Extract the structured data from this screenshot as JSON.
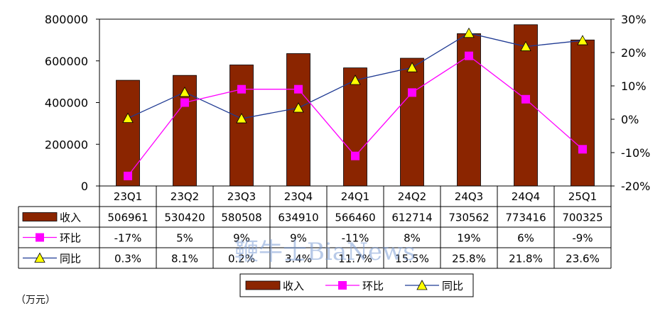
{
  "chart_data": {
    "type": "bar",
    "categories": [
      "23Q1",
      "23Q2",
      "23Q3",
      "23Q4",
      "24Q1",
      "24Q2",
      "24Q3",
      "24Q4",
      "25Q1"
    ],
    "unit": "（万元）",
    "ylim": [
      0,
      800000
    ],
    "yticks": [
      "800000",
      "600000",
      "400000",
      "200000",
      "0"
    ],
    "y2lim": [
      -20,
      30
    ],
    "y2ticks": [
      "30%",
      "20%",
      "10%",
      "0%",
      "-10%",
      "-20%"
    ],
    "series": [
      {
        "name": "收入",
        "kind": "bar",
        "color": "#8b2500",
        "values": [
          506961,
          530420,
          580508,
          634910,
          566460,
          612714,
          730562,
          773416,
          700325
        ],
        "labels": [
          "506961",
          "530420",
          "580508",
          "634910",
          "566460",
          "612714",
          "730562",
          "773416",
          "700325"
        ]
      },
      {
        "name": "环比",
        "kind": "line",
        "axis": "right",
        "color": "#ff00ff",
        "marker": "square",
        "values": [
          -17,
          5,
          9,
          9,
          -11,
          8,
          19,
          6,
          -9
        ],
        "labels": [
          "-17%",
          "5%",
          "9%",
          "9%",
          "-11%",
          "8%",
          "19%",
          "6%",
          "-9%"
        ]
      },
      {
        "name": "同比",
        "kind": "line",
        "axis": "right",
        "color": "#1f3a93",
        "marker": "triangle",
        "values": [
          0.3,
          8.1,
          0.2,
          3.4,
          11.7,
          15.5,
          25.8,
          21.8,
          23.6
        ],
        "labels": [
          "0.3%",
          "8.1%",
          "0.2%",
          "3.4%",
          "11.7%",
          "15.5%",
          "25.8%",
          "21.8%",
          "23.6%"
        ]
      }
    ],
    "legend": {
      "position": "bottom",
      "items": [
        "收入",
        "环比",
        "同比"
      ]
    },
    "grid": false
  },
  "watermark": "鞭牛士BiaNews"
}
